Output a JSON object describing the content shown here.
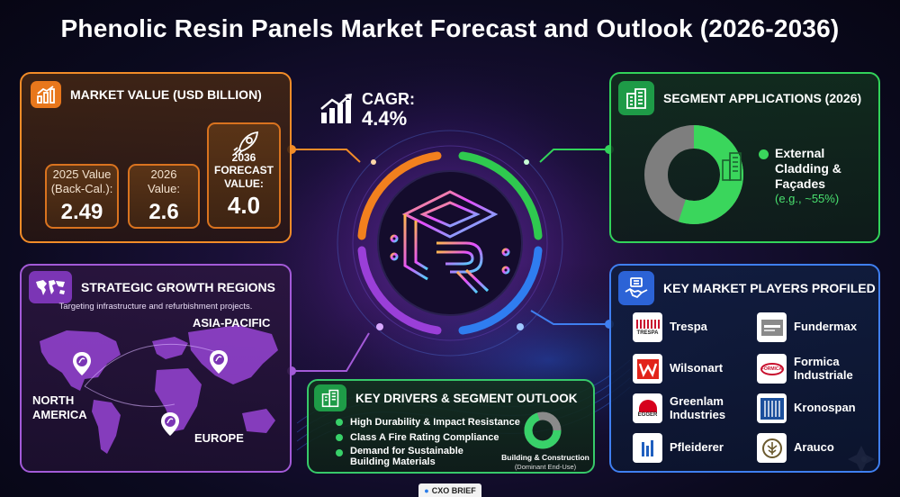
{
  "title": "Phenolic Resin Panels Market Forecast and Outlook (2026-2036)",
  "market_value": {
    "heading": "MARKET VALUE (USD BILLION)",
    "items": [
      {
        "label_1": "2025 Value",
        "label_2": "(Back-Cal.):",
        "value": "2.49"
      },
      {
        "label_1": "2026",
        "label_2": "Value:",
        "value": "2.6"
      },
      {
        "label_1": "2036",
        "label_2": "FORECAST",
        "label_3": "VALUE:",
        "value": "4.0"
      }
    ]
  },
  "cagr": {
    "label": "CAGR:",
    "value": "4.4%"
  },
  "segment": {
    "heading": "SEGMENT APPLICATIONS (2026)",
    "label_1": "External",
    "label_2": "Cladding &",
    "label_3": "Façades",
    "share_text": "(e.g., ~55%)",
    "share_fraction": 0.55,
    "colors": {
      "primary": "#3ad65c",
      "rest": "#7e7e7e"
    }
  },
  "regions": {
    "heading": "STRATEGIC GROWTH REGIONS",
    "subtitle": "Targeting infrastructure and refurbishment projects.",
    "asia": "ASIA-PACIFIC",
    "north_america_1": "NORTH",
    "north_america_2": "AMERICA",
    "europe": "EUROPE"
  },
  "drivers": {
    "heading": "KEY DRIVERS & SEGMENT OUTLOOK",
    "items": [
      "High Durability & Impact Resistance",
      "Class A Fire Rating Compliance",
      "Demand for Sustainable"
    ],
    "item_3b": "Building Materials",
    "donut_label": "Building & Construction",
    "donut_sub": "(Dominant End-Use)",
    "donut_fraction": 0.7
  },
  "players": {
    "heading": "KEY MARKET PLAYERS PROFILED",
    "list": [
      {
        "name": "Trespa",
        "logo_text": "TRESPA",
        "logo_color": "#c8102e"
      },
      {
        "name": "Fundermax",
        "logo_text": "",
        "logo_color": "#777777"
      },
      {
        "name": "Wilsonart",
        "logo_text": "",
        "logo_color": "#e2231a"
      },
      {
        "name": "Formica",
        "name_2": "Industriale",
        "logo_text": "FORMICA",
        "logo_color": "#c8102e"
      },
      {
        "name": "Greenlam",
        "name_2": "Industries",
        "logo_text": "EGGER",
        "logo_color": "#d6001c"
      },
      {
        "name": "Kronospan",
        "logo_text": "",
        "logo_color": "#1b4f9c"
      },
      {
        "name": "Pfleiderer",
        "logo_text": "",
        "logo_color": "#1f5fbf"
      },
      {
        "name": "Arauco",
        "logo_text": "",
        "logo_color": "#6b5a2e"
      }
    ]
  },
  "footer": "CXO BRIEF"
}
